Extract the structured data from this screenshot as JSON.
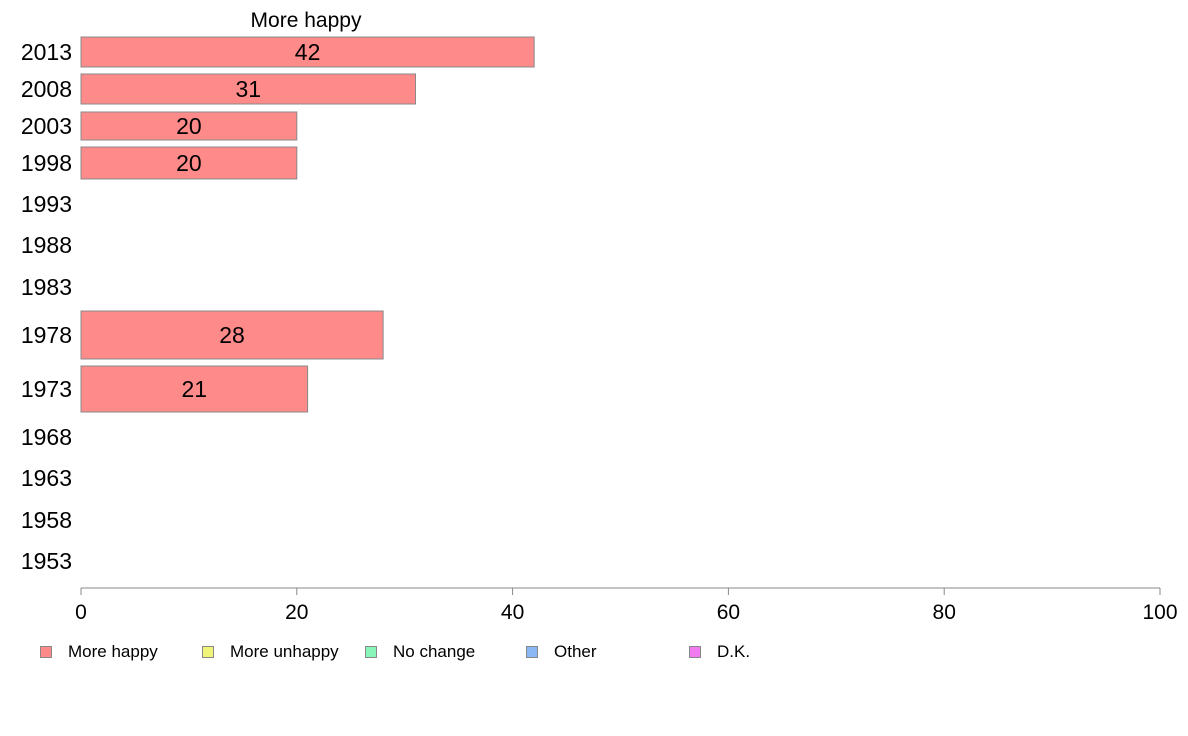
{
  "chart_data": {
    "type": "bar",
    "orientation": "horizontal",
    "panel_title": "More happy",
    "categories": [
      "2013",
      "2008",
      "2003",
      "1998",
      "1993",
      "1988",
      "1983",
      "1978",
      "1973",
      "1968",
      "1963",
      "1958",
      "1953"
    ],
    "series": [
      {
        "name": "More happy",
        "color": "#ff8a8a",
        "values": [
          42,
          31,
          20,
          20,
          null,
          null,
          null,
          28,
          21,
          null,
          null,
          null,
          null
        ],
        "labels": [
          "42",
          "31",
          "20",
          "20",
          "",
          "",
          "",
          "28",
          "21",
          "",
          "",
          "",
          ""
        ]
      }
    ],
    "xlim": [
      0,
      100
    ],
    "xticks": [
      0,
      20,
      40,
      60,
      80,
      100
    ],
    "xtick_labels": [
      "0",
      "20",
      "40",
      "60",
      "80",
      "100"
    ],
    "grid": false,
    "legend": {
      "placement": "bottom",
      "items": [
        {
          "label": "More happy",
          "color": "#ff8a8a"
        },
        {
          "label": "More unhappy",
          "color": "#f0f57a"
        },
        {
          "label": "No change",
          "color": "#8af5b8"
        },
        {
          "label": "Other",
          "color": "#8ab8f5"
        },
        {
          "label": "D.K.",
          "color": "#f07af0"
        }
      ]
    }
  }
}
